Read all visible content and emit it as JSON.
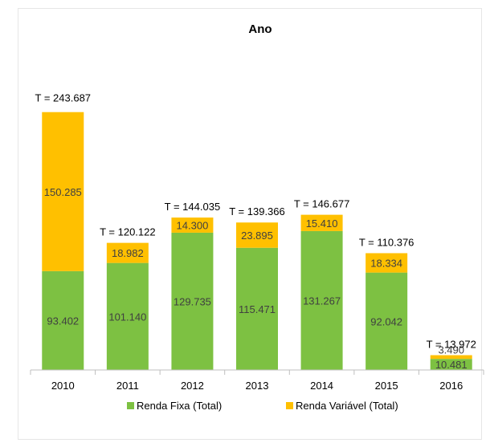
{
  "chart_data": {
    "type": "bar",
    "stacked": true,
    "title": "Ano",
    "categories": [
      "2010",
      "2011",
      "2012",
      "2013",
      "2014",
      "2015",
      "2016"
    ],
    "series": [
      {
        "name": "Renda Fixa (Total)",
        "color": "#7dc142",
        "values": [
          93402,
          101140,
          129735,
          115471,
          131267,
          92042,
          10481
        ],
        "labels": [
          "93.402",
          "101.140",
          "129.735",
          "115.471",
          "131.267",
          "92.042",
          "10.481"
        ]
      },
      {
        "name": "Renda Variável (Total)",
        "color": "#ffc000",
        "values": [
          150285,
          18982,
          14300,
          23895,
          15410,
          18334,
          3490
        ],
        "labels": [
          "150.285",
          "18.982",
          "14.300",
          "23.895",
          "15.410",
          "18.334",
          "3.490"
        ]
      }
    ],
    "totals": [
      "T = 243.687",
      "T = 120.122",
      "T = 144.035",
      "T = 139.366",
      "T = 146.677",
      "T = 110.376",
      "T = 13.972"
    ],
    "ylim": [
      0,
      270000
    ],
    "grid": false,
    "legend_position": "bottom"
  }
}
